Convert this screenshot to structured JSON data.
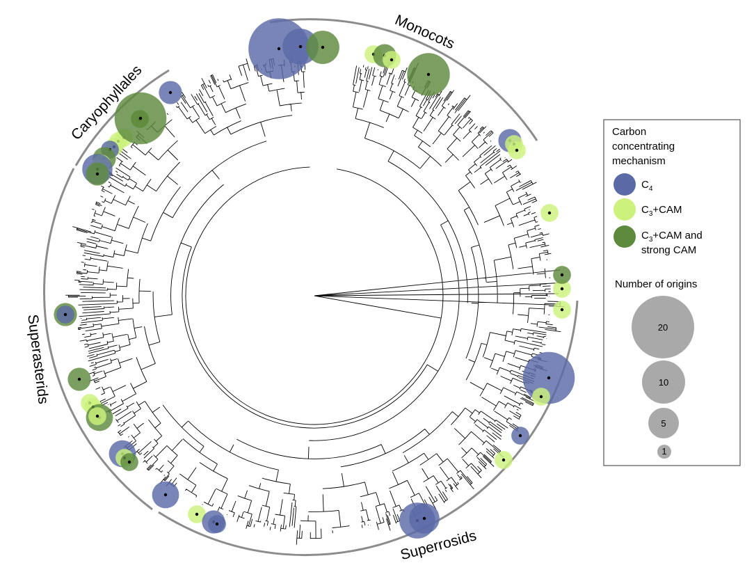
{
  "clades": [
    {
      "name": "Monocots"
    },
    {
      "name": "Caryophyllales"
    },
    {
      "name": "Superasterids"
    },
    {
      "name": "Superrosids"
    }
  ],
  "legend": {
    "title_lines": [
      "Carbon",
      "concentrating",
      "mechanism"
    ],
    "categories": [
      {
        "key": "C4",
        "label_main": "C",
        "label_sub": "4",
        "label_rest": "",
        "color": "#5a6aa6"
      },
      {
        "key": "C3CAM",
        "label_main": "C",
        "label_sub": "3",
        "label_rest": "+CAM",
        "color": "#ccf27c"
      },
      {
        "key": "C3CAMstrong",
        "label_main": "C",
        "label_sub": "3",
        "label_rest": "+CAM and",
        "label_line2": "strong CAM",
        "color": "#5e8a3e"
      }
    ],
    "size_title": "Number of origins",
    "sizes": [
      {
        "value": 20,
        "label": "20"
      },
      {
        "value": 10,
        "label": "10"
      },
      {
        "value": 5,
        "label": "5"
      },
      {
        "value": 1,
        "label": "1"
      }
    ]
  },
  "colors": {
    "C4": "#5a6aa6",
    "C3CAM": "#ccf27c",
    "C3CAMstrong": "#5e8a3e",
    "size_legend": "#a9a9a9",
    "tree": "#000000",
    "arc": "#8c8c8c"
  },
  "origins": [
    {
      "type": "C4",
      "n": 20
    },
    {
      "type": "C4",
      "n": 6
    },
    {
      "type": "C3CAMstrong",
      "n": 5
    },
    {
      "type": "C3CAM",
      "n": 1
    },
    {
      "type": "C3CAMstrong",
      "n": 2
    },
    {
      "type": "C3CAM",
      "n": 1
    },
    {
      "type": "C3CAMstrong",
      "n": 9
    },
    {
      "type": "C4",
      "n": 2
    },
    {
      "type": "C3CAM",
      "n": 1
    },
    {
      "type": "C3CAMstrong",
      "n": 1
    },
    {
      "type": "C3CAM",
      "n": 1
    },
    {
      "type": "C3CAM",
      "n": 1
    },
    {
      "type": "C3CAM",
      "n": 1
    },
    {
      "type": "C3CAMstrong",
      "n": 14
    },
    {
      "type": "C4",
      "n": 1
    },
    {
      "type": "C3CAMstrong",
      "n": 2
    },
    {
      "type": "C3CAM",
      "n": 1
    },
    {
      "type": "C3CAM",
      "n": 1
    },
    {
      "type": "C4",
      "n": 4
    },
    {
      "type": "C3CAMstrong",
      "n": 2
    },
    {
      "type": "C3CAM",
      "n": 1
    },
    {
      "type": "C3CAMstrong",
      "n": 2
    },
    {
      "type": "C4",
      "n": 1
    },
    {
      "type": "C3CAMstrong",
      "n": 2
    },
    {
      "type": "C3CAM",
      "n": 1
    },
    {
      "type": "C3CAM",
      "n": 1
    },
    {
      "type": "C3CAMstrong",
      "n": 3
    },
    {
      "type": "C3CAM",
      "n": 1
    },
    {
      "type": "C4",
      "n": 3
    },
    {
      "type": "C3CAM",
      "n": 1
    },
    {
      "type": "C3CAMstrong",
      "n": 1
    },
    {
      "type": "C4",
      "n": 3
    },
    {
      "type": "C3CAM",
      "n": 1
    },
    {
      "type": "C4",
      "n": 2
    },
    {
      "type": "C4",
      "n": 1
    },
    {
      "type": "C4",
      "n": 14
    },
    {
      "type": "C3CAM",
      "n": 1
    },
    {
      "type": "C4",
      "n": 1
    }
  ]
}
